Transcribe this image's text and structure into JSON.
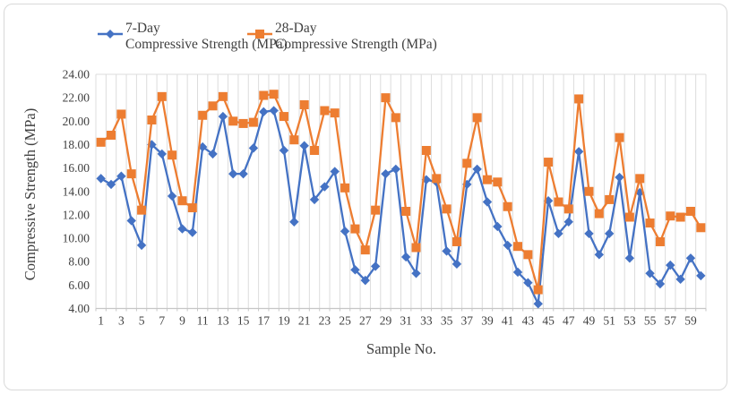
{
  "chart_data": {
    "type": "line",
    "title": "",
    "xlabel": "Sample No.",
    "ylabel": "Compressive Strength (MPa)",
    "ylim": [
      4,
      24
    ],
    "ytick_step": 2,
    "grid": "vertical-only",
    "legend_position": "top",
    "categories": [
      1,
      2,
      3,
      4,
      5,
      6,
      7,
      8,
      9,
      10,
      11,
      12,
      13,
      14,
      15,
      16,
      17,
      18,
      19,
      20,
      21,
      22,
      23,
      24,
      25,
      26,
      27,
      28,
      29,
      30,
      31,
      32,
      33,
      34,
      35,
      36,
      37,
      38,
      39,
      40,
      41,
      42,
      43,
      44,
      45,
      46,
      47,
      48,
      49,
      50,
      51,
      52,
      53,
      54,
      55,
      56,
      57,
      58,
      59,
      60
    ],
    "series": [
      {
        "name": "7-Day Compressive Strength (MPa)",
        "color": "#4472C4",
        "marker": "diamond",
        "values": [
          15.1,
          14.6,
          15.3,
          11.5,
          9.4,
          18.0,
          17.2,
          13.6,
          10.8,
          10.5,
          17.8,
          17.2,
          20.4,
          15.5,
          15.5,
          17.7,
          20.8,
          20.9,
          17.5,
          11.4,
          17.9,
          13.3,
          14.4,
          15.7,
          10.6,
          7.3,
          6.4,
          7.6,
          15.5,
          15.9,
          8.4,
          7.0,
          15.0,
          14.8,
          8.9,
          7.8,
          14.6,
          15.9,
          13.1,
          11.0,
          9.4,
          7.1,
          6.2,
          4.4,
          13.2,
          10.4,
          11.4,
          17.4,
          10.4,
          8.6,
          10.4,
          15.2,
          8.3,
          13.9,
          7.0,
          6.1,
          7.7,
          6.5,
          8.3,
          6.8
        ]
      },
      {
        "name": "28-Day Compressive Strength (MPa)",
        "color": "#ED7D31",
        "marker": "square",
        "values": [
          18.2,
          18.8,
          20.6,
          15.5,
          12.4,
          20.1,
          22.1,
          17.1,
          13.2,
          12.6,
          20.5,
          21.3,
          22.1,
          20.0,
          19.8,
          19.9,
          22.2,
          22.3,
          20.4,
          18.4,
          21.4,
          17.5,
          20.9,
          20.7,
          14.3,
          10.8,
          9.0,
          12.4,
          22.0,
          20.3,
          12.3,
          9.2,
          17.5,
          15.1,
          12.5,
          9.7,
          16.4,
          20.3,
          15.0,
          14.8,
          12.7,
          9.3,
          8.6,
          5.6,
          16.5,
          13.1,
          12.5,
          21.9,
          14.0,
          12.1,
          13.3,
          18.6,
          11.8,
          15.1,
          11.3,
          9.7,
          11.9,
          11.8,
          12.3,
          10.9
        ]
      }
    ]
  },
  "legend": {
    "entries": [
      {
        "line1": "7-Day",
        "line2": "Compressive Strength (MPa)"
      },
      {
        "line1": "28-Day",
        "line2": "Compressive Strength (MPa)"
      }
    ]
  },
  "axes": {
    "y_title": "Compressive Strength (MPa)",
    "x_title": "Sample No.",
    "y_tick_labels": [
      "24.00",
      "22.00",
      "20.00",
      "18.00",
      "16.00",
      "14.00",
      "12.00",
      "10.00",
      "8.00",
      "6.00",
      "4.00"
    ],
    "x_tick_labels": [
      "1",
      "3",
      "5",
      "7",
      "9",
      "11",
      "13",
      "15",
      "17",
      "19",
      "21",
      "23",
      "25",
      "27",
      "29",
      "31",
      "33",
      "35",
      "37",
      "39",
      "41",
      "43",
      "45",
      "47",
      "49",
      "51",
      "53",
      "55",
      "57",
      "59"
    ]
  },
  "colors": {
    "series_7day": "#4472C4",
    "series_28day": "#ED7D31",
    "gridline": "#DCDCDC",
    "axis_line": "#C6C6C6",
    "text": "#404040",
    "figure_border": "#D9D9D9",
    "background": "#FFFFFF"
  }
}
